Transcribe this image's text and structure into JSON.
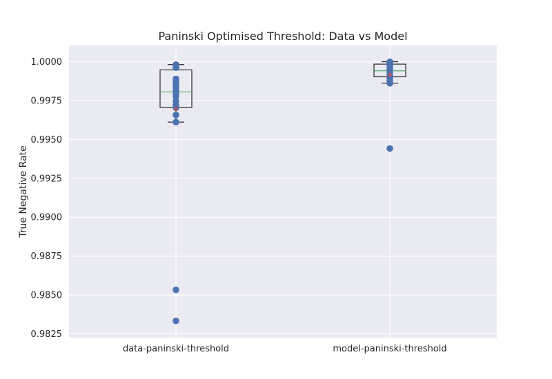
{
  "chart_data": {
    "type": "box",
    "title": "Paninski Optimised Threshold: Data vs Model",
    "xlabel": "",
    "ylabel": "True Negative Rate",
    "ylim": [
      0.98225,
      1.00105
    ],
    "yticks": [
      0.9825,
      0.985,
      0.9875,
      0.99,
      0.9925,
      0.995,
      0.9975,
      1.0
    ],
    "ytick_labels": [
      "0.9825",
      "0.9850",
      "0.9875",
      "0.9900",
      "0.9925",
      "0.9950",
      "0.9975",
      "1.0000"
    ],
    "grid": true,
    "categories": [
      "data-paninski-threshold",
      "model-paninski-threshold"
    ],
    "boxes": [
      {
        "q1": 0.99707,
        "median": 0.99806,
        "q3": 0.99948,
        "whisker_low": 0.99612,
        "whisker_high": 0.99982,
        "mean": 0.99697,
        "points": [
          0.99982,
          0.99975,
          0.99968,
          0.99962,
          0.9989,
          0.99872,
          0.99855,
          0.99835,
          0.99815,
          0.99792,
          0.99778,
          0.99748,
          0.99722,
          0.99705,
          0.99658,
          0.99612,
          0.98533,
          0.98333
        ]
      },
      {
        "q1": 0.99903,
        "median": 0.99942,
        "q3": 0.99985,
        "whisker_low": 0.99862,
        "whisker_high": 1.0,
        "mean": 0.99918,
        "points": [
          1.0,
          0.99995,
          0.99985,
          0.99975,
          0.9996,
          0.99948,
          0.9993,
          0.99912,
          0.99895,
          0.99878,
          0.99862,
          0.99442
        ]
      }
    ],
    "colors": {
      "background": "#eaeaf2",
      "grid": "#ffffff",
      "points": "#4c72b0",
      "median": "#55a868",
      "mean": "#c44e52",
      "box": "#000000"
    }
  }
}
